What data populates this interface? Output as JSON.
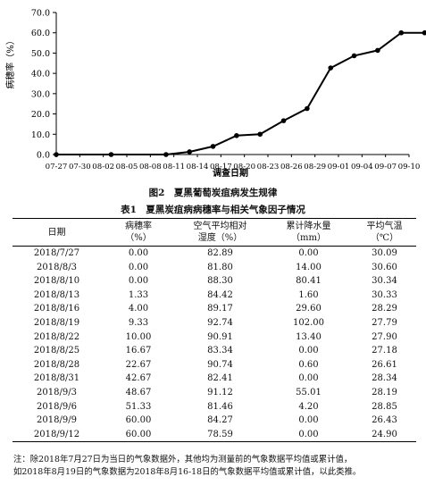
{
  "figure": {
    "caption": "图2　夏黑葡萄炭疽病发生规律"
  },
  "chart_data": {
    "type": "line",
    "ylabel": "病穗率（%）",
    "xlabel": "调查日期",
    "ylim": [
      0,
      70
    ],
    "yticks": [
      "0.0",
      "10.0",
      "20.0",
      "30.0",
      "40.0",
      "50.0",
      "60.0",
      "70.0"
    ],
    "x": [
      "07-27",
      "07-30",
      "08-02",
      "08-05",
      "08-08",
      "08-11",
      "08-14",
      "08-17",
      "08-20",
      "08-23",
      "08-26",
      "08-29",
      "09-01",
      "09-04",
      "09-07",
      "09-10"
    ],
    "points": [
      {
        "x": "07-27",
        "y": 0.0
      },
      {
        "x": "08-03",
        "y": 0.0
      },
      {
        "x": "08-10",
        "y": 0.0
      },
      {
        "x": "08-13",
        "y": 1.33
      },
      {
        "x": "08-16",
        "y": 4.0
      },
      {
        "x": "08-19",
        "y": 9.33
      },
      {
        "x": "08-22",
        "y": 10.0
      },
      {
        "x": "08-25",
        "y": 16.67
      },
      {
        "x": "08-28",
        "y": 22.67
      },
      {
        "x": "08-31",
        "y": 42.67
      },
      {
        "x": "09-03",
        "y": 48.67
      },
      {
        "x": "09-06",
        "y": 51.33
      },
      {
        "x": "09-09",
        "y": 60.0
      },
      {
        "x": "09-12",
        "y": 60.0
      }
    ],
    "grid": false,
    "legend": "none"
  },
  "table": {
    "caption": "表1　夏黑炭疽病病穗率与相关气象因子情况",
    "headers": [
      [
        "日期",
        ""
      ],
      [
        "病穗率",
        "（%）"
      ],
      [
        "空气平均相对",
        "湿度（%）"
      ],
      [
        "累计降水量",
        "（mm）"
      ],
      [
        "平均气温",
        "（℃）"
      ]
    ],
    "rows": [
      [
        "2018/7/27",
        "0.00",
        "82.89",
        "0.00",
        "30.09"
      ],
      [
        "2018/8/3",
        "0.00",
        "81.80",
        "14.00",
        "30.60"
      ],
      [
        "2018/8/10",
        "0.00",
        "88.30",
        "80.41",
        "30.34"
      ],
      [
        "2018/8/13",
        "1.33",
        "84.42",
        "1.60",
        "30.33"
      ],
      [
        "2018/8/16",
        "4.00",
        "89.17",
        "29.60",
        "28.29"
      ],
      [
        "2018/8/19",
        "9.33",
        "92.74",
        "102.00",
        "27.79"
      ],
      [
        "2018/8/22",
        "10.00",
        "90.91",
        "13.40",
        "27.90"
      ],
      [
        "2018/8/25",
        "16.67",
        "83.34",
        "0.00",
        "27.18"
      ],
      [
        "2018/8/28",
        "22.67",
        "90.74",
        "0.60",
        "26.61"
      ],
      [
        "2018/8/31",
        "42.67",
        "82.41",
        "0.00",
        "28.34"
      ],
      [
        "2018/9/3",
        "48.67",
        "91.12",
        "55.01",
        "28.19"
      ],
      [
        "2018/9/6",
        "51.33",
        "81.46",
        "4.20",
        "28.85"
      ],
      [
        "2018/9/9",
        "60.00",
        "84.27",
        "0.00",
        "26.43"
      ],
      [
        "2018/9/12",
        "60.00",
        "78.59",
        "0.00",
        "24.90"
      ]
    ]
  },
  "note": {
    "line1": "注：除2018年7月27日为当日的气象数据外，其他均为测量前的气象数据平均值或累计值，",
    "line2": "如2018年8月19日的气象数据为2018年8月16-18日的气象数据平均值或累计值，以此类推。"
  }
}
